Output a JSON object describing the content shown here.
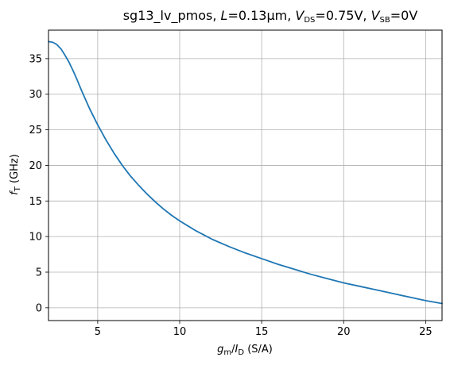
{
  "chart_data": {
    "type": "line",
    "title": {
      "prefix": "sg13_lv_pmos, ",
      "L_symbol": "L",
      "L_value": "=0.13µm, ",
      "VDS_symbol": "V",
      "VDS_sub": "DS",
      "VDS_value": "=0.75V, ",
      "VSB_symbol": "V",
      "VSB_sub": "SB",
      "VSB_value": "=0V"
    },
    "xlabel": {
      "g_symbol": "g",
      "g_sub": "m",
      "slash": "/",
      "I_symbol": "I",
      "I_sub": "D",
      "unit": " (S/A)"
    },
    "ylabel": {
      "f_symbol": "f",
      "f_sub": "T",
      "unit": " (GHz)"
    },
    "xlim": [
      2,
      26
    ],
    "ylim": [
      -1.8,
      39.0
    ],
    "xticks": [
      5,
      10,
      15,
      20,
      25
    ],
    "yticks": [
      0,
      5,
      10,
      15,
      20,
      25,
      30,
      35
    ],
    "grid": true,
    "line_color": "#1f77b4",
    "series": [
      {
        "x": [
          2.0,
          2.25,
          2.5,
          2.75,
          3.0,
          3.25,
          3.5,
          3.75,
          4.0,
          4.5,
          5.0,
          5.5,
          6.0,
          6.5,
          7.0,
          7.5,
          8.0,
          8.5,
          9.0,
          9.5,
          10.0,
          10.5,
          11.0,
          12.0,
          13.0,
          14.0,
          15.0,
          16.0,
          17.0,
          18.0,
          19.0,
          20.0,
          21.0,
          22.0,
          23.0,
          24.0,
          25.0,
          26.0
        ],
        "y": [
          37.4,
          37.3,
          37.0,
          36.4,
          35.5,
          34.5,
          33.3,
          32.0,
          30.6,
          28.0,
          25.7,
          23.6,
          21.7,
          20.0,
          18.5,
          17.2,
          16.0,
          14.9,
          13.9,
          13.0,
          12.2,
          11.5,
          10.8,
          9.6,
          8.6,
          7.7,
          6.9,
          6.1,
          5.4,
          4.7,
          4.1,
          3.5,
          3.0,
          2.5,
          2.0,
          1.5,
          1.0,
          0.6
        ]
      }
    ]
  }
}
